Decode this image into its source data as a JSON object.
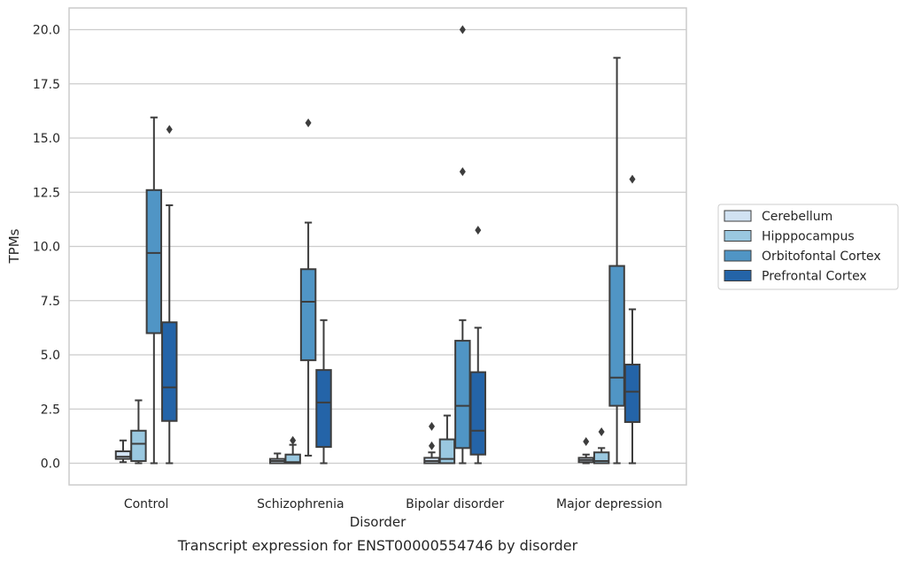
{
  "chart_data": {
    "type": "box",
    "caption": "Transcript expression for ENST00000554746 by disorder",
    "xlabel": "Disorder",
    "ylabel": "TPMs",
    "ylim": [
      -1,
      21
    ],
    "yticks": [
      0.0,
      2.5,
      5.0,
      7.5,
      10.0,
      12.5,
      15.0,
      17.5,
      20.0
    ],
    "ytick_labels": [
      "0.0",
      "2.5",
      "5.0",
      "7.5",
      "10.0",
      "12.5",
      "15.0",
      "17.5",
      "20.0"
    ],
    "grid": "horizontal",
    "legend_position": "right",
    "categories": [
      "Control",
      "Schizophrenia",
      "Bipolar disorder",
      "Major depression"
    ],
    "series": [
      {
        "name": "Cerebellum",
        "color": "#d1e2f2",
        "boxes": [
          {
            "min": 0.05,
            "q1": 0.2,
            "median": 0.3,
            "q3": 0.55,
            "max": 1.05,
            "outliers": []
          },
          {
            "min": 0.0,
            "q1": 0.0,
            "median": 0.1,
            "q3": 0.2,
            "max": 0.45,
            "outliers": []
          },
          {
            "min": 0.0,
            "q1": 0.0,
            "median": 0.1,
            "q3": 0.25,
            "max": 0.5,
            "outliers": [
              0.8,
              1.7
            ]
          },
          {
            "min": 0.0,
            "q1": 0.05,
            "median": 0.15,
            "q3": 0.25,
            "max": 0.4,
            "outliers": [
              1.0
            ]
          }
        ]
      },
      {
        "name": "Hipppocampus",
        "color": "#9ac8e0",
        "boxes": [
          {
            "min": 0.0,
            "q1": 0.1,
            "median": 0.9,
            "q3": 1.5,
            "max": 2.9,
            "outliers": []
          },
          {
            "min": 0.0,
            "q1": 0.0,
            "median": 0.05,
            "q3": 0.4,
            "max": 0.85,
            "outliers": [
              1.05
            ]
          },
          {
            "min": 0.0,
            "q1": 0.0,
            "median": 0.2,
            "q3": 1.1,
            "max": 2.2,
            "outliers": []
          },
          {
            "min": 0.0,
            "q1": 0.0,
            "median": 0.1,
            "q3": 0.5,
            "max": 0.7,
            "outliers": [
              1.45
            ]
          }
        ]
      },
      {
        "name": "Orbitofontal Cortex",
        "color": "#5095c5",
        "boxes": [
          {
            "min": 0.0,
            "q1": 6.0,
            "median": 9.7,
            "q3": 12.6,
            "max": 15.95,
            "outliers": []
          },
          {
            "min": 0.35,
            "q1": 4.75,
            "median": 7.45,
            "q3": 8.95,
            "max": 11.1,
            "outliers": [
              15.7
            ]
          },
          {
            "min": 0.0,
            "q1": 0.7,
            "median": 2.65,
            "q3": 5.65,
            "max": 6.6,
            "outliers": [
              13.45,
              20.0
            ]
          },
          {
            "min": 0.0,
            "q1": 2.65,
            "median": 3.95,
            "q3": 9.1,
            "max": 18.7,
            "outliers": []
          }
        ]
      },
      {
        "name": "Prefrontal Cortex",
        "color": "#2464a8",
        "boxes": [
          {
            "min": 0.0,
            "q1": 1.95,
            "median": 3.5,
            "q3": 6.5,
            "max": 11.9,
            "outliers": [
              15.4
            ]
          },
          {
            "min": 0.0,
            "q1": 0.75,
            "median": 2.8,
            "q3": 4.3,
            "max": 6.6,
            "outliers": []
          },
          {
            "min": 0.0,
            "q1": 0.4,
            "median": 1.5,
            "q3": 4.2,
            "max": 6.25,
            "outliers": [
              10.75
            ]
          },
          {
            "min": 0.0,
            "q1": 1.9,
            "median": 3.3,
            "q3": 4.55,
            "max": 7.1,
            "outliers": [
              13.1
            ]
          }
        ]
      }
    ]
  }
}
